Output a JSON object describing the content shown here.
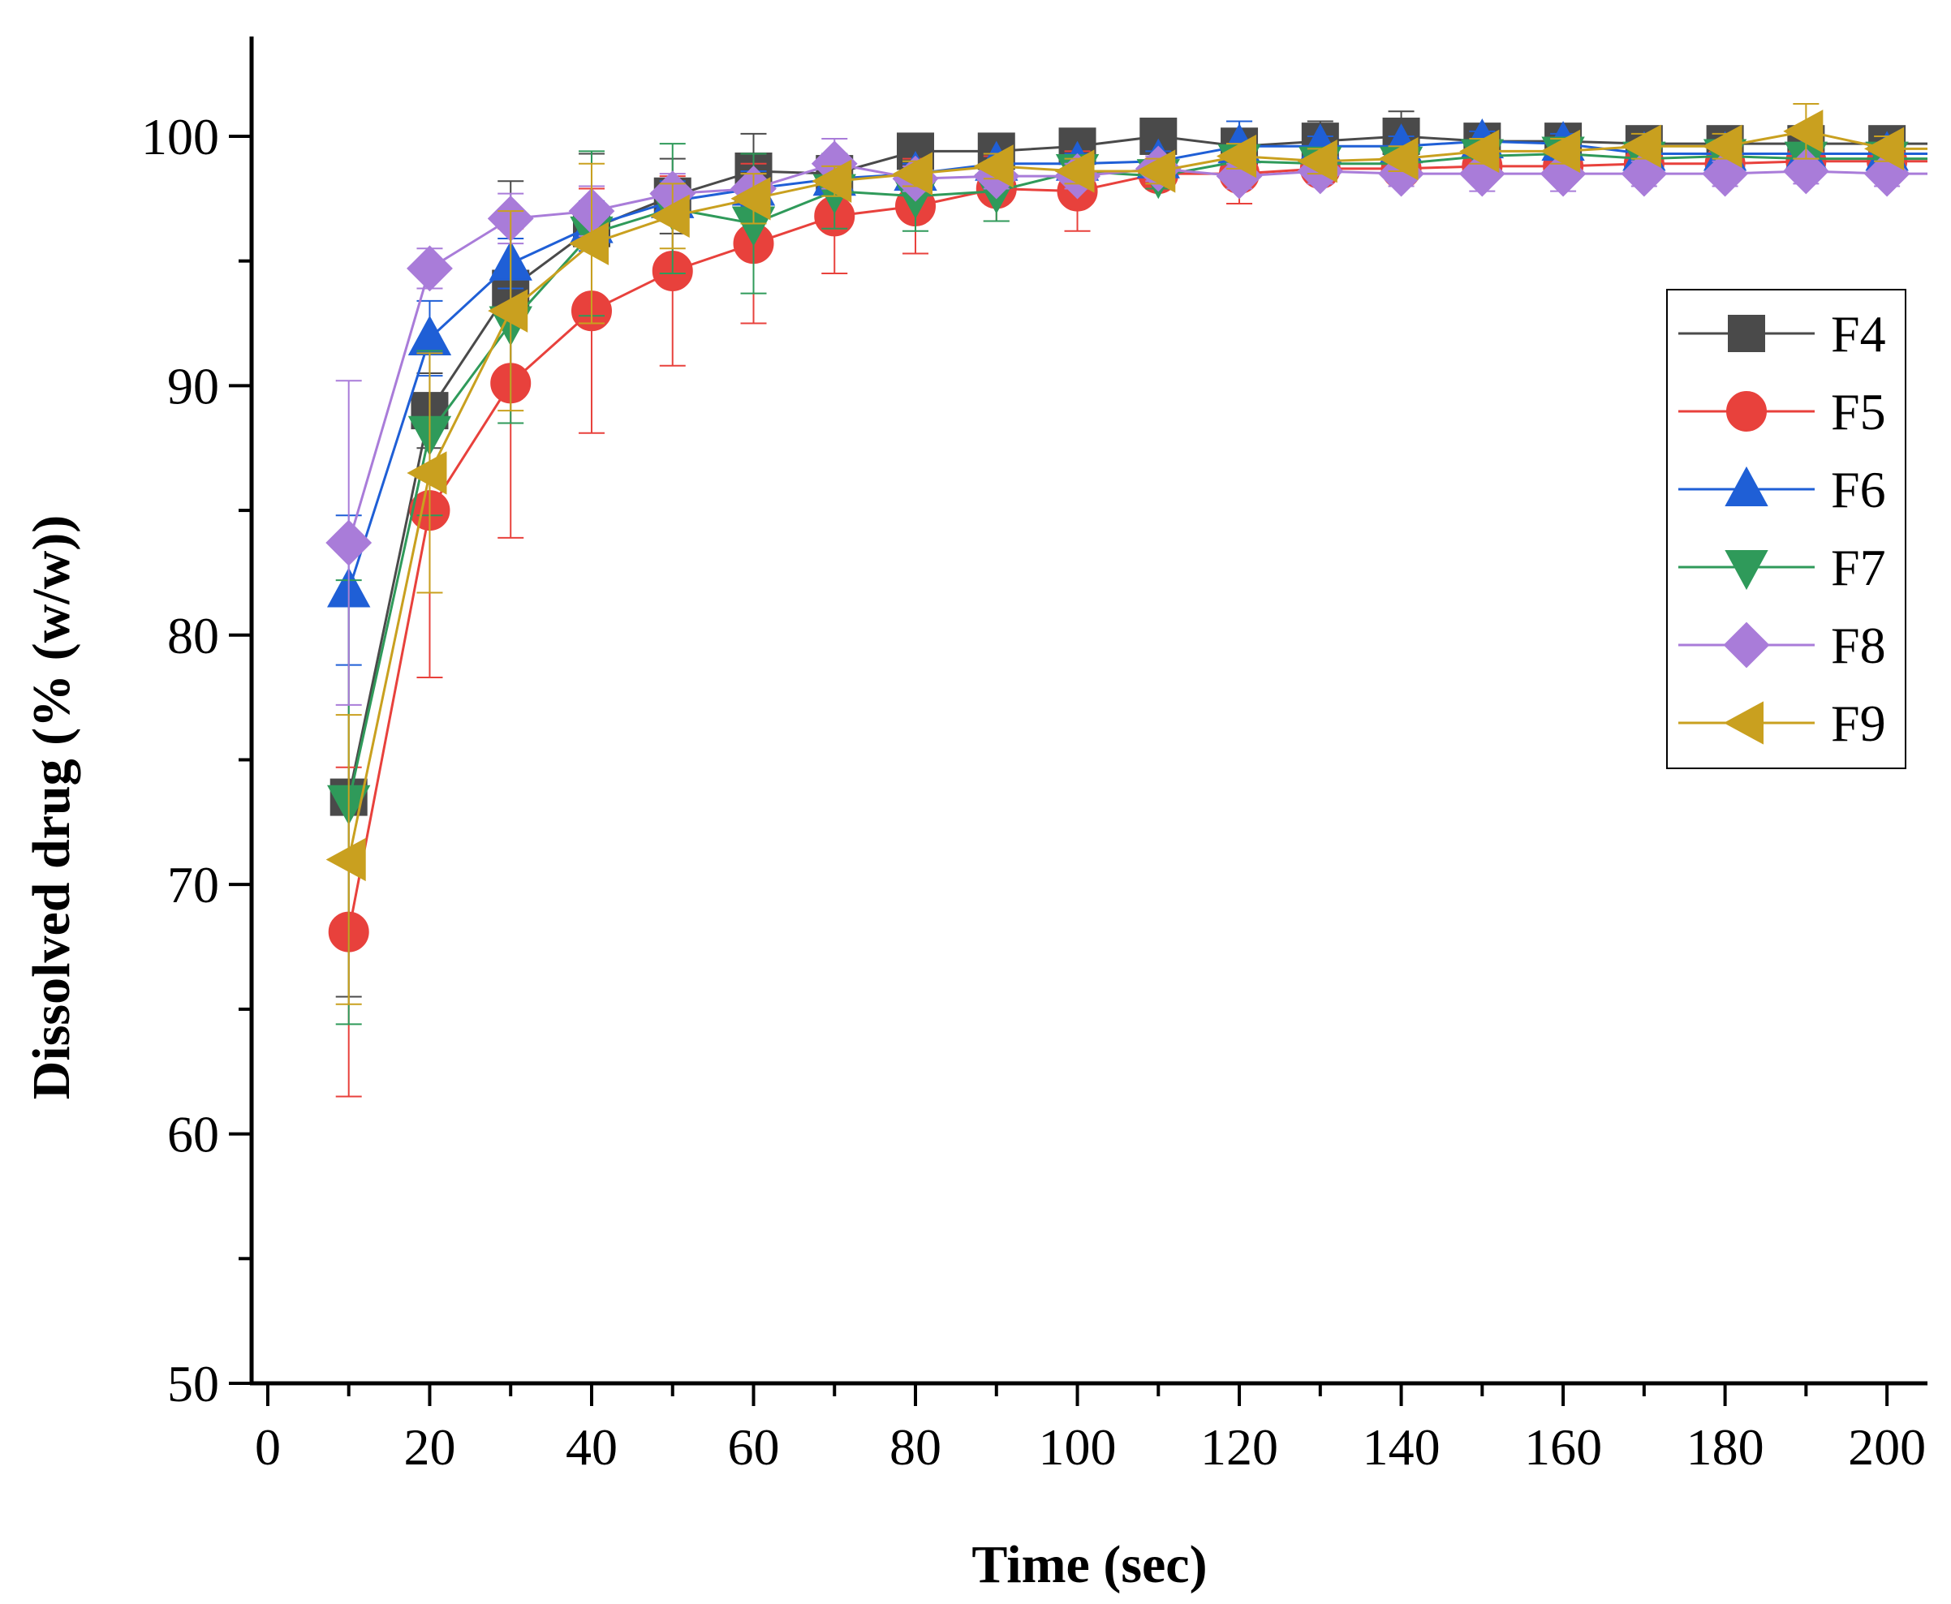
{
  "chart_data": {
    "type": "line",
    "title": "",
    "xlabel": "Time (sec)",
    "ylabel": "Dissolved drug (% (w/w))",
    "xlim": [
      -2,
      205
    ],
    "ylim": [
      50,
      104
    ],
    "xticks": [
      0,
      20,
      40,
      60,
      80,
      100,
      120,
      140,
      160,
      180,
      200
    ],
    "yticks": [
      50,
      60,
      70,
      80,
      90,
      100
    ],
    "x_tick_labels": [
      "0",
      "20",
      "40",
      "60",
      "80",
      "100",
      "120",
      "140",
      "160",
      "180",
      "200"
    ],
    "y_tick_labels": [
      "50",
      "60",
      "70",
      "80",
      "90",
      "100"
    ],
    "legend_position": "right",
    "x": [
      10,
      20,
      30,
      40,
      50,
      60,
      70,
      80,
      90,
      100,
      110,
      120,
      130,
      140,
      150,
      160,
      170,
      180,
      190,
      200
    ],
    "series": [
      {
        "name": "F4",
        "marker": "square",
        "color": "#4a4a4a",
        "values": [
          73.5,
          89.0,
          93.9,
          96.3,
          97.6,
          98.6,
          98.5,
          99.4,
          99.4,
          99.6,
          100.0,
          99.6,
          99.8,
          100.0,
          99.8,
          99.8,
          99.7,
          99.7,
          99.7,
          99.7
        ],
        "errors": [
          8.0,
          1.5,
          4.3,
          3.0,
          1.5,
          1.5,
          0.5,
          0.4,
          0.4,
          0.5,
          0.6,
          1.0,
          0.8,
          1.0,
          0.4,
          0.4,
          0.4,
          0.4,
          0.4,
          0.4
        ]
      },
      {
        "name": "F5",
        "marker": "circle",
        "color": "#e8413c",
        "values": [
          68.1,
          85.0,
          90.1,
          93.0,
          94.6,
          95.7,
          96.8,
          97.2,
          97.9,
          97.8,
          98.5,
          98.5,
          98.7,
          98.7,
          98.8,
          98.8,
          98.9,
          98.9,
          99.0,
          99.0
        ],
        "errors": [
          6.6,
          6.7,
          6.2,
          4.9,
          3.8,
          3.2,
          2.3,
          1.9,
          1.3,
          1.6,
          0.6,
          1.2,
          0.6,
          0.6,
          0.6,
          0.6,
          0.6,
          0.6,
          0.6,
          0.6
        ]
      },
      {
        "name": "F6",
        "marker": "triangle-up",
        "color": "#1f5fd6",
        "values": [
          81.8,
          91.9,
          94.9,
          96.4,
          97.4,
          97.9,
          98.3,
          98.5,
          98.9,
          98.9,
          99.0,
          99.6,
          99.6,
          99.6,
          99.8,
          99.7,
          99.3,
          99.3,
          99.3,
          99.3
        ],
        "errors": [
          3.0,
          1.5,
          1.0,
          1.0,
          0.8,
          0.7,
          0.4,
          0.4,
          0.4,
          0.4,
          0.4,
          1.0,
          0.4,
          0.4,
          0.4,
          0.4,
          0.4,
          0.4,
          0.4,
          0.4
        ]
      },
      {
        "name": "F7",
        "marker": "triangle-down",
        "color": "#2f9a5a",
        "values": [
          73.3,
          88.1,
          92.5,
          96.1,
          97.1,
          96.5,
          97.8,
          97.6,
          97.8,
          98.6,
          98.4,
          99.0,
          98.9,
          98.9,
          99.2,
          99.3,
          99.1,
          99.2,
          99.1,
          99.1
        ],
        "errors": [
          8.9,
          3.3,
          4.0,
          3.3,
          2.6,
          2.8,
          1.5,
          1.4,
          1.2,
          0.5,
          0.5,
          0.5,
          0.5,
          0.5,
          0.5,
          0.5,
          0.5,
          0.5,
          0.5,
          0.5
        ]
      },
      {
        "name": "F8",
        "marker": "diamond",
        "color": "#a97cd9",
        "values": [
          83.7,
          94.7,
          96.7,
          97.0,
          97.7,
          97.9,
          98.9,
          98.3,
          98.4,
          98.4,
          98.7,
          98.4,
          98.6,
          98.5,
          98.5,
          98.5,
          98.5,
          98.5,
          98.6,
          98.5
        ],
        "errors": [
          6.5,
          0.8,
          1.0,
          1.0,
          0.8,
          0.6,
          1.0,
          0.5,
          0.5,
          0.5,
          0.5,
          0.5,
          0.5,
          0.5,
          0.7,
          0.7,
          0.5,
          0.5,
          0.5,
          0.5
        ]
      },
      {
        "name": "F9",
        "marker": "triangle-left",
        "color": "#c9a01f",
        "values": [
          71.0,
          86.5,
          93.0,
          95.7,
          96.8,
          97.5,
          98.2,
          98.5,
          98.8,
          98.6,
          98.6,
          99.2,
          99.0,
          99.1,
          99.4,
          99.4,
          99.6,
          99.6,
          100.2,
          99.5
        ],
        "errors": [
          5.8,
          4.8,
          4.0,
          3.2,
          1.3,
          1.0,
          0.6,
          0.5,
          0.5,
          0.5,
          0.5,
          0.5,
          0.5,
          0.5,
          0.5,
          0.5,
          0.5,
          0.5,
          1.1,
          0.5
        ]
      }
    ]
  }
}
